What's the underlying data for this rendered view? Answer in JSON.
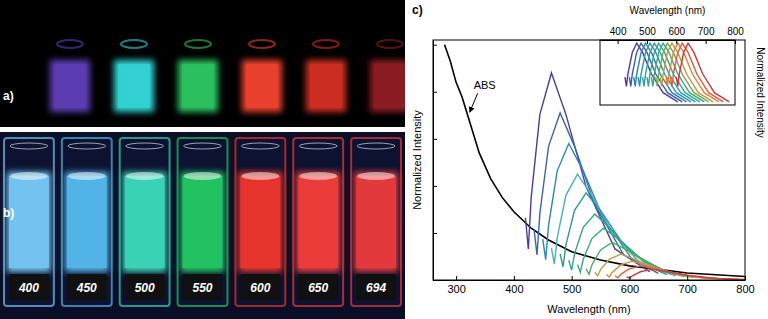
{
  "photos": [
    {
      "label": "a)",
      "vials": [
        {
          "color": "#5a3cb0"
        },
        {
          "color": "#33d0d0"
        },
        {
          "color": "#2bbf5e"
        },
        {
          "color": "#e8402e"
        },
        {
          "color": "#cc2e24"
        },
        {
          "color": "#8a1c24"
        }
      ]
    },
    {
      "label": "b)",
      "vials": [
        {
          "label": "400",
          "color": "#74c2f0"
        },
        {
          "label": "450",
          "color": "#52b4e6"
        },
        {
          "label": "500",
          "color": "#3ad2b4"
        },
        {
          "label": "550",
          "color": "#22c262"
        },
        {
          "label": "600",
          "color": "#e6342c"
        },
        {
          "label": "650",
          "color": "#ec3c3a"
        },
        {
          "label": "694",
          "color": "#e23a3c"
        }
      ]
    }
  ],
  "chart_data": [
    {
      "type": "line",
      "title": "c)",
      "x_label": "Wavelength (nm)",
      "y_label": "Normalized Intensity",
      "xlim": [
        260,
        800
      ],
      "ylim": [
        0,
        1.02
      ],
      "xticks": [
        300,
        400,
        500,
        600,
        700,
        800
      ],
      "yticks": [
        0,
        0.2,
        0.4,
        0.6,
        0.8,
        1
      ],
      "tick_labels": "x",
      "series": [
        {
          "name": "ABS",
          "color": "#000000",
          "x": [
            280,
            290,
            300,
            310,
            320,
            340,
            360,
            380,
            400,
            430,
            460,
            500,
            550,
            600,
            650,
            700,
            750,
            800
          ],
          "values": [
            1.0,
            0.93,
            0.84,
            0.78,
            0.7,
            0.54,
            0.43,
            0.35,
            0.29,
            0.22,
            0.17,
            0.12,
            0.085,
            0.06,
            0.045,
            0.03,
            0.022,
            0.015
          ]
        },
        {
          "color": "#4b3d9e",
          "x": [
            420,
            425,
            430,
            445,
            465,
            490,
            525,
            575,
            635
          ],
          "values": [
            0.264,
            0.132,
            0.352,
            0.704,
            0.88,
            0.704,
            0.396,
            0.132,
            0.035
          ]
        },
        {
          "color": "#3a66a8",
          "x": [
            435,
            440,
            445,
            460,
            480,
            505,
            540,
            590,
            650
          ],
          "values": [
            0.213,
            0.107,
            0.284,
            0.568,
            0.71,
            0.568,
            0.32,
            0.107,
            0.028
          ]
        },
        {
          "color": "#2f86ad",
          "x": [
            450,
            455,
            460,
            475,
            495,
            520,
            555,
            605,
            665
          ],
          "values": [
            0.174,
            0.087,
            0.232,
            0.464,
            0.58,
            0.464,
            0.261,
            0.087,
            0.023
          ]
        },
        {
          "color": "#48b1c0",
          "x": [
            465,
            470,
            475,
            490,
            510,
            535,
            570,
            620,
            680
          ],
          "values": [
            0.135,
            0.068,
            0.18,
            0.36,
            0.45,
            0.36,
            0.203,
            0.068,
            0.018
          ]
        },
        {
          "color": "#2a9a96",
          "x": [
            480,
            485,
            490,
            505,
            525,
            550,
            585,
            635,
            695
          ],
          "values": [
            0.111,
            0.056,
            0.148,
            0.296,
            0.37,
            0.296,
            0.167,
            0.056,
            0.015
          ]
        },
        {
          "color": "#2fa58a",
          "x": [
            495,
            500,
            505,
            520,
            540,
            565,
            600,
            650,
            710
          ],
          "values": [
            0.084,
            0.042,
            0.112,
            0.224,
            0.28,
            0.224,
            0.126,
            0.042,
            0.011
          ]
        },
        {
          "color": "#3aa87a",
          "x": [
            510,
            515,
            520,
            535,
            555,
            580,
            615,
            665,
            725
          ],
          "values": [
            0.066,
            0.033,
            0.088,
            0.176,
            0.22,
            0.176,
            0.099,
            0.033,
            0.009
          ]
        },
        {
          "color": "#55aa66",
          "x": [
            525,
            530,
            535,
            550,
            570,
            595,
            630,
            680,
            740
          ],
          "values": [
            0.048,
            0.024,
            0.064,
            0.128,
            0.16,
            0.128,
            0.072,
            0.024,
            0.006
          ]
        },
        {
          "color": "#b6a548",
          "x": [
            540,
            545,
            550,
            565,
            585,
            610,
            645,
            695,
            755
          ],
          "values": [
            0.033,
            0.017,
            0.044,
            0.088,
            0.11,
            0.088,
            0.05,
            0.017,
            0.004
          ]
        },
        {
          "color": "#e08a40",
          "x": [
            560,
            565,
            570,
            585,
            605,
            630,
            665,
            715,
            775
          ],
          "values": [
            0.024,
            0.012,
            0.032,
            0.064,
            0.08,
            0.064,
            0.036,
            0.012,
            0.003
          ]
        },
        {
          "color": "#e0603a",
          "x": [
            575,
            580,
            585,
            600,
            620,
            645,
            680,
            730,
            790
          ],
          "values": [
            0.018,
            0.009,
            0.024,
            0.048,
            0.06,
            0.048,
            0.027,
            0.009,
            0.002
          ]
        },
        {
          "color": "#c9403a",
          "x": [
            595,
            600,
            605,
            620,
            640,
            665,
            700,
            750,
            810
          ],
          "values": [
            0.014,
            0.007,
            0.018,
            0.036,
            0.045,
            0.036,
            0.02,
            0.007,
            0.002
          ]
        }
      ]
    },
    {
      "type": "line",
      "x_label": "Wavelength (nm)",
      "y_label": "Normalized Intensity",
      "xlim": [
        340,
        800
      ],
      "ylim": [
        0,
        1.05
      ],
      "xticks": [
        400,
        500,
        600,
        700,
        800
      ],
      "tick_labels": "x",
      "series": [
        {
          "color": "#4b3d9e",
          "x": [
            425,
            430,
            435,
            450,
            465,
            485,
            515,
            555,
            605
          ],
          "values": [
            0.45,
            0.3,
            0.5,
            0.85,
            1,
            0.85,
            0.5,
            0.2,
            0.05
          ]
        },
        {
          "color": "#3a5fa8",
          "x": [
            440,
            445,
            450,
            465,
            480,
            500,
            530,
            570,
            620
          ],
          "values": [
            0.45,
            0.3,
            0.5,
            0.85,
            1,
            0.85,
            0.5,
            0.2,
            0.05
          ]
        },
        {
          "color": "#2f7fb0",
          "x": [
            455,
            460,
            465,
            480,
            495,
            515,
            545,
            585,
            635
          ],
          "values": [
            0.45,
            0.3,
            0.5,
            0.85,
            1,
            0.85,
            0.5,
            0.2,
            0.05
          ]
        },
        {
          "color": "#2a95b0",
          "x": [
            470,
            475,
            480,
            495,
            510,
            530,
            560,
            600,
            650
          ],
          "values": [
            0.45,
            0.3,
            0.5,
            0.85,
            1,
            0.85,
            0.5,
            0.2,
            0.05
          ]
        },
        {
          "color": "#2aa0a0",
          "x": [
            485,
            490,
            495,
            510,
            525,
            545,
            575,
            615,
            665
          ],
          "values": [
            0.45,
            0.3,
            0.5,
            0.85,
            1,
            0.85,
            0.5,
            0.2,
            0.05
          ]
        },
        {
          "color": "#30a890",
          "x": [
            500,
            505,
            510,
            525,
            540,
            560,
            590,
            630,
            680
          ],
          "values": [
            0.45,
            0.3,
            0.5,
            0.85,
            1,
            0.85,
            0.5,
            0.2,
            0.05
          ]
        },
        {
          "color": "#40a878",
          "x": [
            515,
            520,
            525,
            540,
            555,
            575,
            605,
            645,
            695
          ],
          "values": [
            0.45,
            0.3,
            0.5,
            0.85,
            1,
            0.85,
            0.5,
            0.2,
            0.05
          ]
        },
        {
          "color": "#6aa860",
          "x": [
            530,
            535,
            540,
            555,
            570,
            590,
            620,
            660,
            710
          ],
          "values": [
            0.45,
            0.3,
            0.5,
            0.85,
            1,
            0.85,
            0.5,
            0.2,
            0.05
          ]
        },
        {
          "color": "#c09a40",
          "x": [
            545,
            550,
            555,
            570,
            585,
            605,
            635,
            675,
            725
          ],
          "values": [
            0.45,
            0.3,
            0.5,
            0.85,
            1,
            0.85,
            0.5,
            0.2,
            0.05
          ]
        },
        {
          "color": "#e08040",
          "x": [
            565,
            570,
            575,
            590,
            605,
            625,
            655,
            695,
            745
          ],
          "values": [
            0.45,
            0.3,
            0.5,
            0.85,
            1,
            0.85,
            0.5,
            0.2,
            0.05
          ]
        },
        {
          "color": "#e05a3a",
          "x": [
            580,
            585,
            590,
            605,
            620,
            640,
            670,
            710,
            760
          ],
          "values": [
            0.45,
            0.3,
            0.5,
            0.85,
            1,
            0.85,
            0.5,
            0.2,
            0.05
          ]
        },
        {
          "color": "#c83a3a",
          "x": [
            600,
            605,
            610,
            625,
            640,
            660,
            690,
            730,
            780
          ],
          "values": [
            0.45,
            0.3,
            0.5,
            0.85,
            1,
            0.85,
            0.5,
            0.2,
            0.05
          ]
        }
      ]
    }
  ]
}
